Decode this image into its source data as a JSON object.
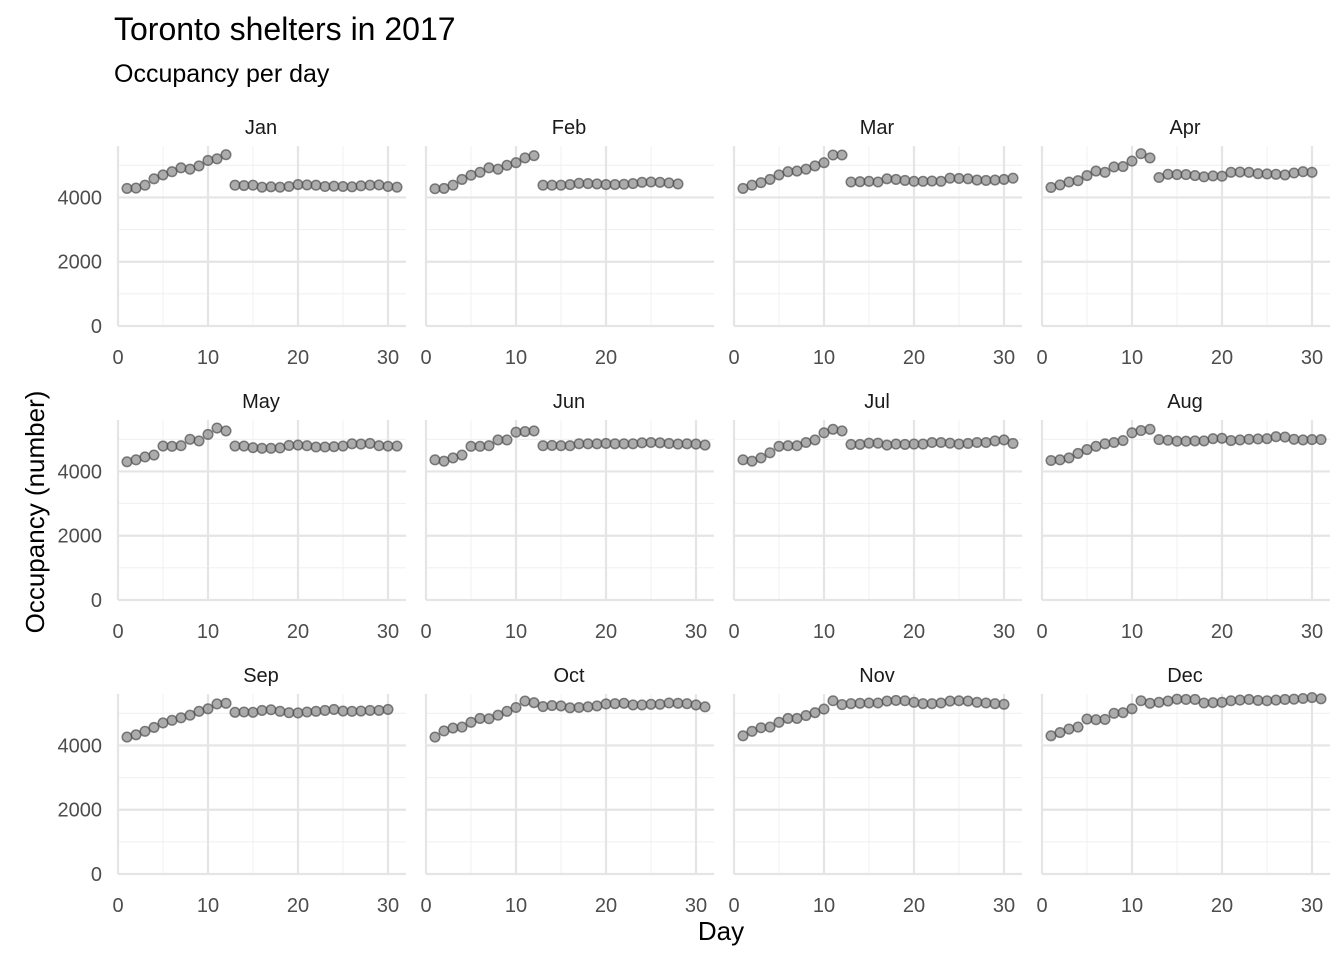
{
  "chart_data": {
    "type": "scatter",
    "title": "Toronto shelters in 2017",
    "subtitle": "Occupancy per day",
    "xlabel": "Day",
    "ylabel": "Occupancy (number)",
    "x_ticks": [
      0,
      10,
      20,
      30
    ],
    "y_ticks": [
      0,
      2000,
      4000
    ],
    "xlim": [
      0,
      32
    ],
    "ylim": [
      0,
      5600
    ],
    "grid": true,
    "facets": [
      {
        "label": "Jan",
        "x_ticks": [
          0,
          10,
          20,
          30
        ],
        "values": [
          4280,
          4290,
          4380,
          4580,
          4700,
          4800,
          4920,
          4880,
          4980,
          5150,
          5200,
          5330,
          4380,
          4370,
          4380,
          4320,
          4330,
          4320,
          4340,
          4400,
          4390,
          4380,
          4340,
          4350,
          4340,
          4330,
          4360,
          4380,
          4390,
          4340,
          4320
        ]
      },
      {
        "label": "Feb",
        "x_ticks": [
          0,
          10,
          20
        ],
        "values": [
          4270,
          4280,
          4380,
          4560,
          4690,
          4780,
          4920,
          4880,
          5000,
          5080,
          5230,
          5300,
          4380,
          4380,
          4380,
          4400,
          4440,
          4430,
          4420,
          4400,
          4400,
          4410,
          4430,
          4470,
          4480,
          4470,
          4450,
          4420
        ]
      },
      {
        "label": "Mar",
        "x_ticks": [
          0,
          10,
          20,
          30
        ],
        "values": [
          4280,
          4380,
          4460,
          4560,
          4700,
          4800,
          4820,
          4880,
          4980,
          5080,
          5320,
          5320,
          4480,
          4490,
          4500,
          4480,
          4580,
          4560,
          4530,
          4500,
          4500,
          4510,
          4500,
          4600,
          4590,
          4580,
          4540,
          4530,
          4540,
          4560,
          4600
        ]
      },
      {
        "label": "Apr",
        "x_ticks": [
          0,
          10,
          20,
          30
        ],
        "values": [
          4310,
          4390,
          4480,
          4520,
          4680,
          4820,
          4780,
          4950,
          4960,
          5130,
          5360,
          5230,
          4620,
          4720,
          4710,
          4710,
          4680,
          4640,
          4670,
          4660,
          4780,
          4790,
          4780,
          4740,
          4730,
          4720,
          4700,
          4760,
          4800,
          4780
        ]
      },
      {
        "label": "May",
        "x_ticks": [
          0,
          10,
          20,
          30
        ],
        "values": [
          4300,
          4360,
          4450,
          4510,
          4790,
          4780,
          4800,
          5000,
          4950,
          5150,
          5350,
          5260,
          4790,
          4790,
          4740,
          4720,
          4720,
          4730,
          4810,
          4820,
          4800,
          4760,
          4760,
          4770,
          4790,
          4860,
          4850,
          4870,
          4800,
          4790,
          4790
        ]
      },
      {
        "label": "Jun",
        "x_ticks": [
          0,
          10,
          20,
          30
        ],
        "values": [
          4360,
          4320,
          4420,
          4510,
          4780,
          4780,
          4800,
          4980,
          4980,
          5220,
          5240,
          5260,
          4800,
          4810,
          4800,
          4800,
          4860,
          4860,
          4860,
          4870,
          4860,
          4860,
          4860,
          4890,
          4900,
          4890,
          4870,
          4850,
          4860,
          4850,
          4820
        ]
      },
      {
        "label": "Jul",
        "x_ticks": [
          0,
          10,
          20,
          30
        ],
        "values": [
          4360,
          4320,
          4420,
          4580,
          4780,
          4800,
          4800,
          4900,
          4980,
          5200,
          5310,
          5260,
          4840,
          4840,
          4880,
          4880,
          4820,
          4850,
          4840,
          4850,
          4850,
          4900,
          4900,
          4880,
          4850,
          4870,
          4900,
          4900,
          4950,
          4980,
          4870
        ]
      },
      {
        "label": "Aug",
        "x_ticks": [
          0,
          10,
          20,
          30
        ],
        "values": [
          4340,
          4360,
          4420,
          4560,
          4680,
          4780,
          4860,
          4900,
          4960,
          5200,
          5270,
          5310,
          4990,
          4970,
          4940,
          4940,
          4950,
          4950,
          5020,
          5030,
          4960,
          4980,
          5000,
          5010,
          5020,
          5080,
          5070,
          5000,
          4980,
          4990,
          4990
        ]
      },
      {
        "label": "Sep",
        "x_ticks": [
          0,
          10,
          20,
          30
        ],
        "values": [
          4260,
          4330,
          4440,
          4560,
          4700,
          4780,
          4860,
          4940,
          5060,
          5140,
          5290,
          5310,
          5030,
          5040,
          5030,
          5090,
          5110,
          5060,
          5020,
          5010,
          5040,
          5060,
          5090,
          5120,
          5070,
          5060,
          5070,
          5090,
          5090,
          5120
        ]
      },
      {
        "label": "Oct",
        "x_ticks": [
          0,
          10,
          20,
          30
        ],
        "values": [
          4260,
          4450,
          4540,
          4570,
          4720,
          4840,
          4830,
          4940,
          5060,
          5180,
          5380,
          5330,
          5210,
          5240,
          5230,
          5170,
          5180,
          5200,
          5230,
          5290,
          5300,
          5310,
          5260,
          5260,
          5280,
          5280,
          5320,
          5310,
          5300,
          5260,
          5200
        ]
      },
      {
        "label": "Nov",
        "x_ticks": [
          0,
          10,
          20,
          30
        ],
        "values": [
          4300,
          4440,
          4550,
          4570,
          4720,
          4840,
          4840,
          4930,
          5020,
          5130,
          5390,
          5270,
          5300,
          5310,
          5320,
          5320,
          5380,
          5400,
          5390,
          5340,
          5300,
          5300,
          5320,
          5380,
          5390,
          5380,
          5340,
          5320,
          5300,
          5280
        ]
      },
      {
        "label": "Dec",
        "x_ticks": [
          0,
          10,
          20,
          30
        ],
        "values": [
          4300,
          4400,
          4510,
          4570,
          4820,
          4800,
          4810,
          5000,
          5020,
          5140,
          5390,
          5310,
          5340,
          5380,
          5440,
          5430,
          5430,
          5320,
          5330,
          5340,
          5390,
          5410,
          5430,
          5400,
          5390,
          5410,
          5430,
          5440,
          5460,
          5490,
          5450
        ]
      }
    ]
  }
}
